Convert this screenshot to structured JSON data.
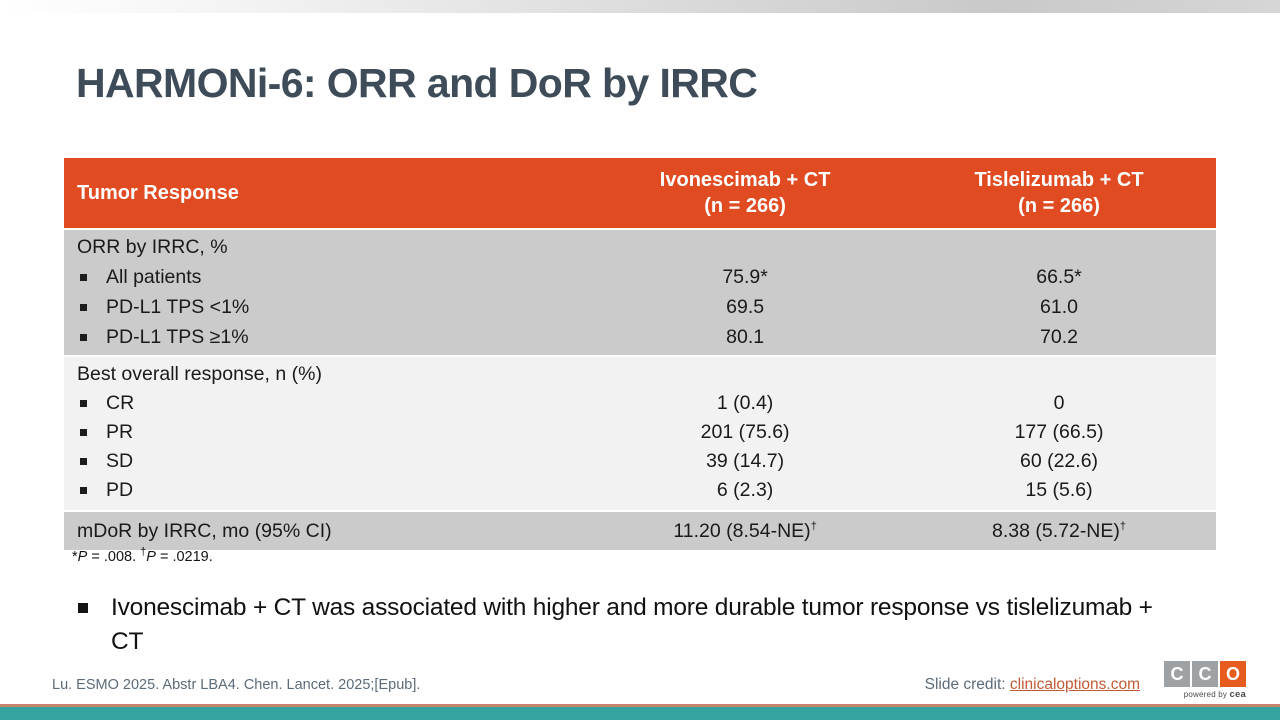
{
  "colors": {
    "accent": "#E04B22",
    "row-gray": "#CBCBCB",
    "row-light": "#F2F2F2",
    "title": "#3E4C59",
    "footer-text": "#5B6B7A",
    "link": "#C25A33",
    "logo-gray": "#9EA2A5",
    "logo-orange": "#E65C1E",
    "salmon": "#C4836B",
    "teal": "#35A4A1",
    "text": "#1A1A1A"
  },
  "title": "HARMONi-6: ORR and DoR by IRRC",
  "table": {
    "header": {
      "col1": "Tumor Response",
      "col2_line1": "Ivonescimab + CT",
      "col2_line2": "(n = 266)",
      "col3_line1": "Tislelizumab + CT",
      "col3_line2": "(n = 266)"
    },
    "section1": {
      "rows": [
        {
          "label": "ORR by IRRC, %",
          "v1": "",
          "v2": ""
        },
        {
          "label": "All patients",
          "v1": "75.9*",
          "v2": "66.5*"
        },
        {
          "label": "PD-L1 TPS <1%",
          "v1": "69.5",
          "v2": "61.0"
        },
        {
          "label": "PD-L1 TPS ≥1%",
          "v1": "80.1",
          "v2": "70.2"
        }
      ]
    },
    "section2": {
      "rows": [
        {
          "label": "Best overall response, n (%)",
          "v1": "",
          "v2": ""
        },
        {
          "label": "CR",
          "v1": "1 (0.4)",
          "v2": "0"
        },
        {
          "label": "PR",
          "v1": "201 (75.6)",
          "v2": "177 (66.5)"
        },
        {
          "label": "SD",
          "v1": "39 (14.7)",
          "v2": "60 (22.6)"
        },
        {
          "label": "PD",
          "v1": "6 (2.3)",
          "v2": "15 (5.6)"
        }
      ]
    },
    "section3": {
      "label": "mDoR by IRRC, mo (95% CI)",
      "v1": "11.20 (8.54-NE)",
      "v1_sup": "†",
      "v2": "8.38 (5.72-NE)",
      "v2_sup": "†"
    }
  },
  "footnote": {
    "star": "*",
    "p1": "P",
    "seg1": " = .008. ",
    "dagger": "†",
    "p2": "P",
    "seg2": " = .0219."
  },
  "takeaway": "Ivonescimab + CT was associated with higher and more durable tumor response vs tislelizumab + CT",
  "footer": {
    "citation": "Lu. ESMO 2025. Abstr LBA4. Chen. Lancet. 2025;[Epub].",
    "credit_label": "Slide credit: ",
    "credit_link": "clinicaloptions.com"
  },
  "logo": {
    "letter1": "C",
    "letter2": "C",
    "letter3": "O",
    "tagline_prefix": "powered by ",
    "tagline_brand": "cea"
  }
}
